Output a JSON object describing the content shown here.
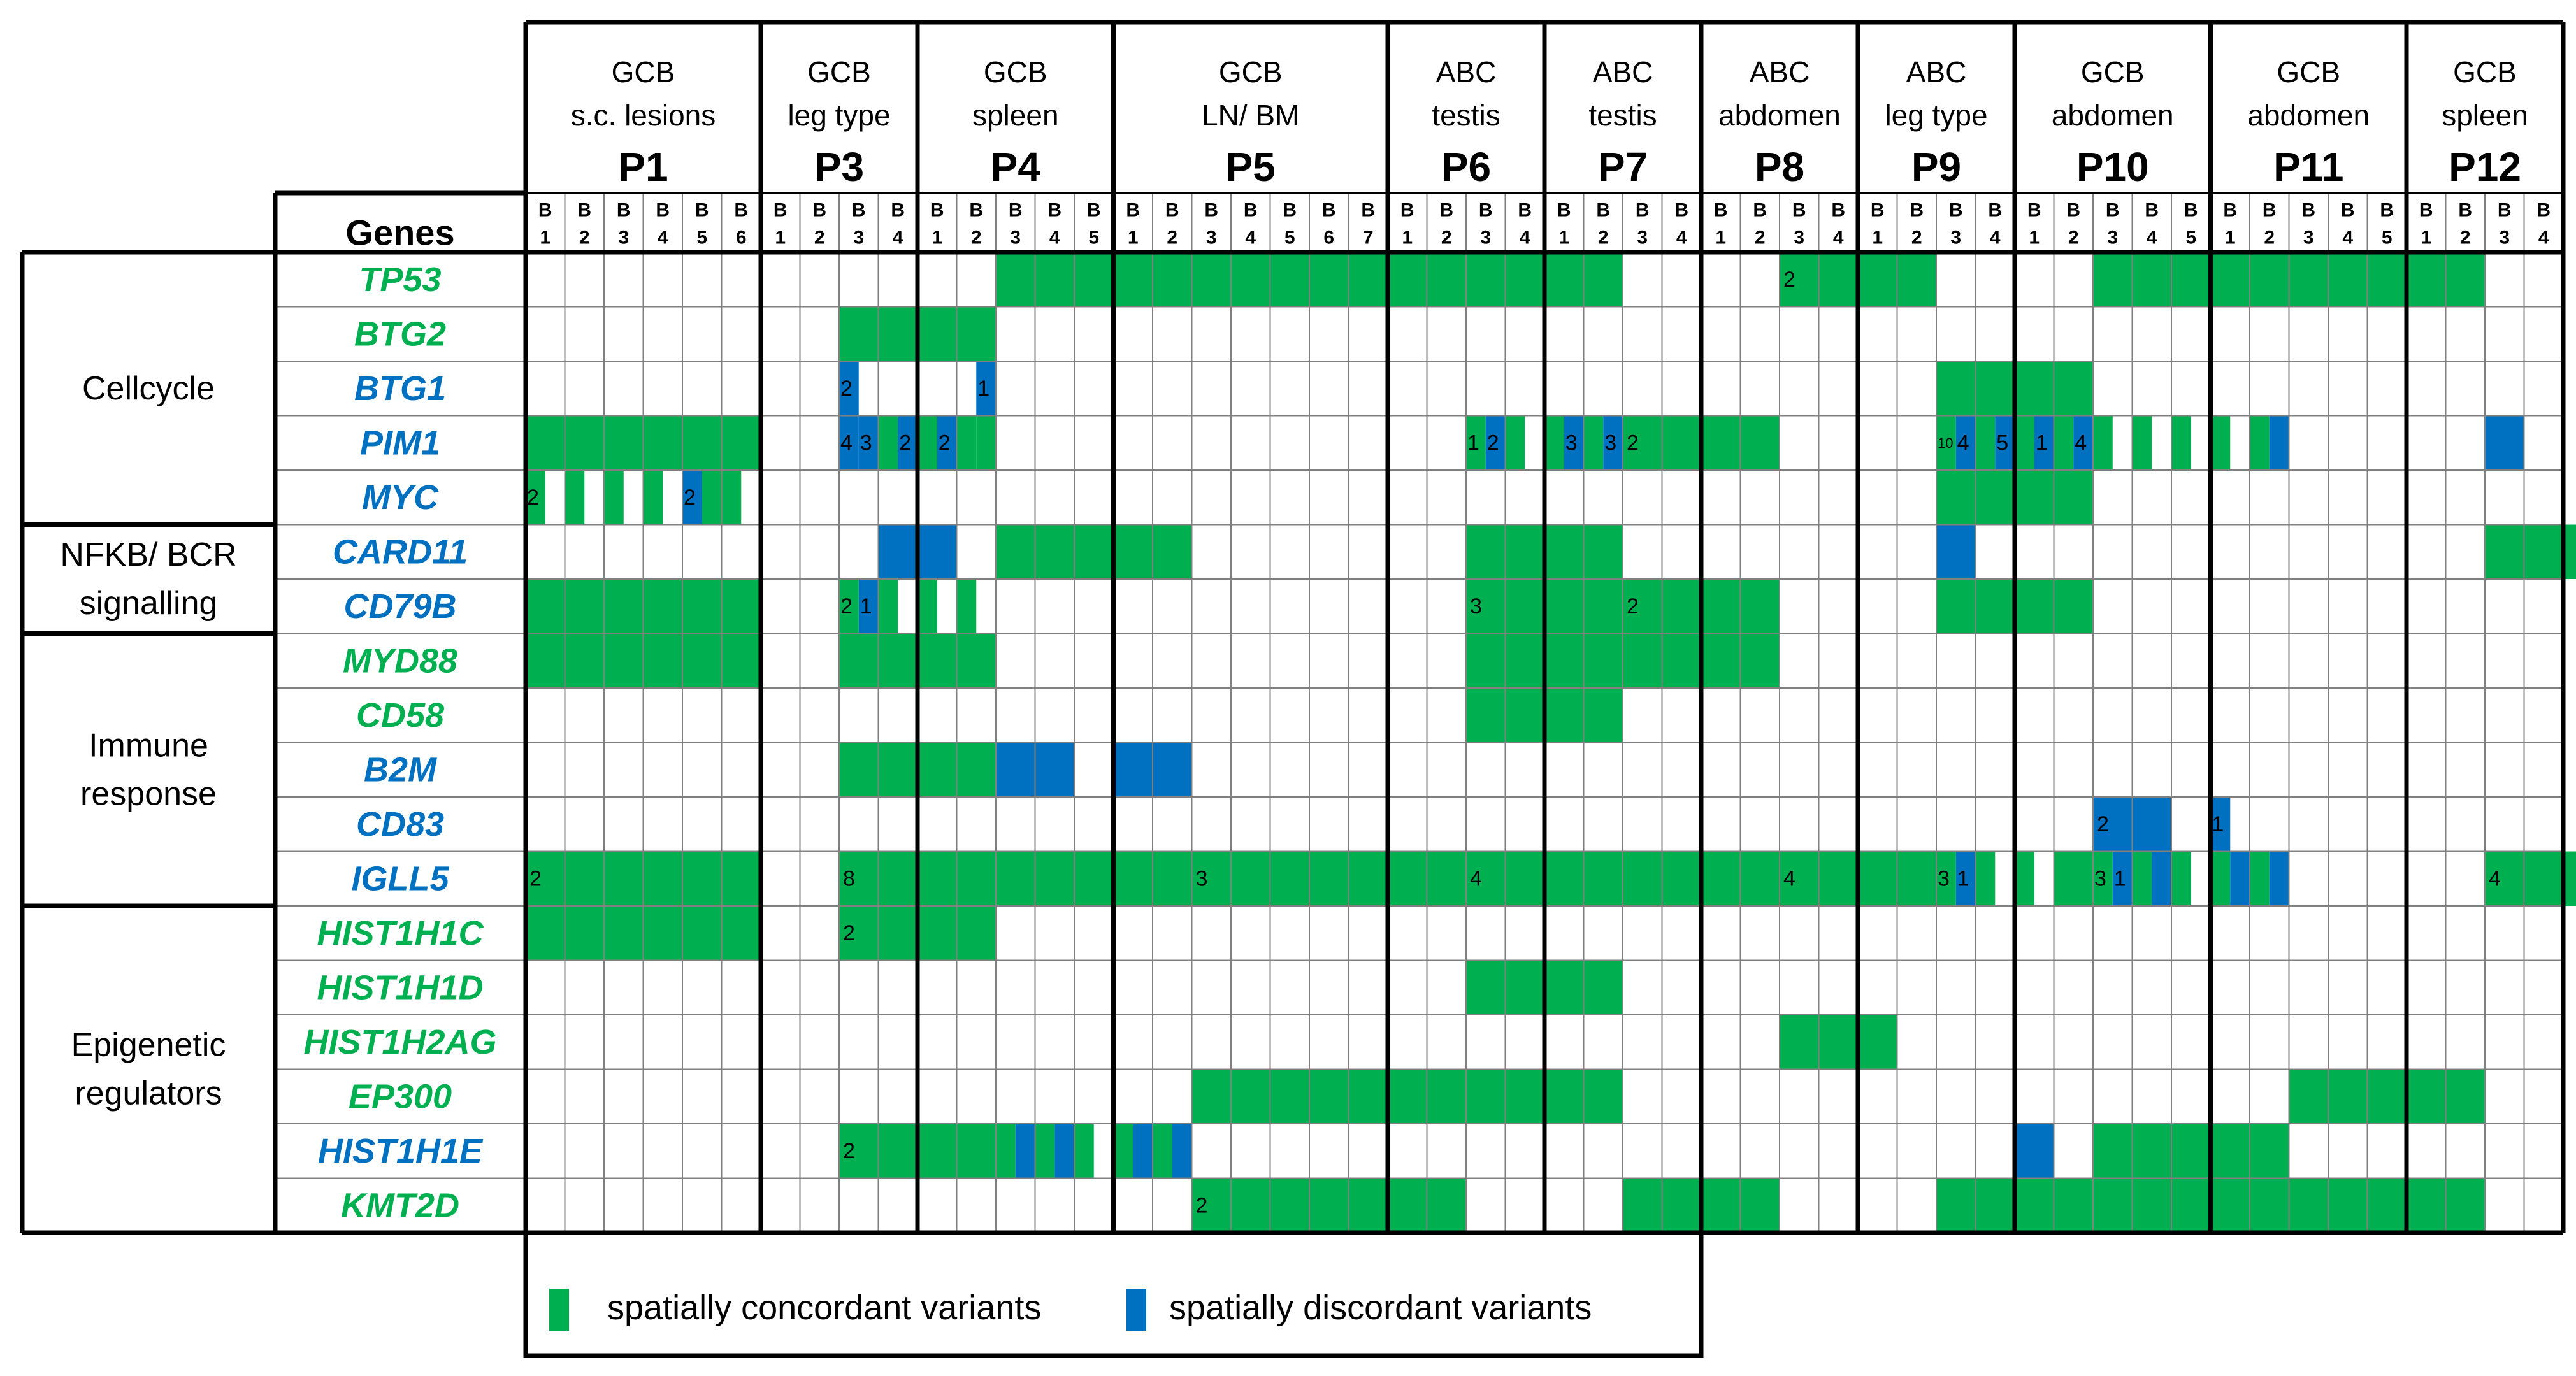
{
  "chart_data": {
    "type": "heatmap",
    "title": "",
    "corner_label": "Genes",
    "biopsy_prefix": "B",
    "patients": [
      {
        "id": "P1",
        "subtype": "GCB",
        "site": "s.c. lesions",
        "biopsies": 6
      },
      {
        "id": "P3",
        "subtype": "GCB",
        "site": "leg type",
        "biopsies": 4
      },
      {
        "id": "P4",
        "subtype": "GCB",
        "site": "spleen",
        "biopsies": 5
      },
      {
        "id": "P5",
        "subtype": "GCB",
        "site": "LN/ BM",
        "biopsies": 7
      },
      {
        "id": "P6",
        "subtype": "ABC",
        "site": "testis",
        "biopsies": 4
      },
      {
        "id": "P7",
        "subtype": "ABC",
        "site": "testis",
        "biopsies": 4
      },
      {
        "id": "P8",
        "subtype": "ABC",
        "site": "abdomen",
        "biopsies": 4
      },
      {
        "id": "P9",
        "subtype": "ABC",
        "site": "leg type",
        "biopsies": 4
      },
      {
        "id": "P10",
        "subtype": "GCB",
        "site": "abdomen",
        "biopsies": 5
      },
      {
        "id": "P11",
        "subtype": "GCB",
        "site": "abdomen",
        "biopsies": 5
      },
      {
        "id": "P12",
        "subtype": "GCB",
        "site": "spleen",
        "biopsies": 4
      }
    ],
    "categories": [
      {
        "label": [
          "Cellcycle"
        ],
        "start": 0,
        "rows": 5
      },
      {
        "label": [
          "NFKB/ BCR",
          "signalling"
        ],
        "start": 5,
        "rows": 2
      },
      {
        "label": [
          "Immune",
          "response"
        ],
        "start": 7,
        "rows": 5
      },
      {
        "label": [
          "Epigenetic",
          "regulators"
        ],
        "start": 12,
        "rows": 6
      }
    ],
    "genes": [
      {
        "name": "TP53",
        "type": "concordant",
        "cells": [
          {
            "c": 12,
            "w": 5,
            "k": "g"
          },
          {
            "c": 17,
            "w": 7,
            "k": "g"
          },
          {
            "c": 24,
            "w": 4,
            "k": "g"
          },
          {
            "c": 32,
            "w": 4,
            "k": "g",
            "n": "2"
          },
          {
            "c": 40,
            "w": 5,
            "k": "g"
          },
          {
            "c": 45,
            "w": 5,
            "k": "g"
          }
        ]
      },
      {
        "name": "BTG2",
        "type": "concordant",
        "cells": [
          {
            "c": 8,
            "w": 4,
            "k": "g"
          }
        ]
      },
      {
        "name": "BTG1",
        "type": "discordant",
        "cells": [
          {
            "c": 8,
            "w": 0.5,
            "k": "b",
            "n": "2"
          },
          {
            "c": 11.5,
            "w": 0.5,
            "k": "b",
            "n": "1"
          },
          {
            "c": 36,
            "w": 4,
            "k": "g"
          }
        ]
      },
      {
        "name": "PIM1",
        "type": "discordant",
        "cells": [
          {
            "c": 0,
            "w": 6,
            "k": "g"
          },
          {
            "c": 8,
            "w": 0.5,
            "k": "b",
            "n": "4"
          },
          {
            "c": 8.5,
            "w": 0.5,
            "k": "b",
            "n": "3"
          },
          {
            "c": 9,
            "w": 0.5,
            "k": "g"
          },
          {
            "c": 9.5,
            "w": 0.5,
            "k": "b",
            "n": "2"
          },
          {
            "c": 10,
            "w": 0.5,
            "k": "g"
          },
          {
            "c": 10.5,
            "w": 0.5,
            "k": "b",
            "n": "2"
          },
          {
            "c": 11,
            "w": 0.5,
            "k": "g"
          },
          {
            "c": 11.5,
            "w": 0.5,
            "k": "g"
          },
          {
            "c": 24,
            "w": 0.5,
            "k": "g",
            "n": "1"
          },
          {
            "c": 24.5,
            "w": 0.5,
            "k": "b",
            "n": "2"
          },
          {
            "c": 25,
            "w": 0.5,
            "k": "g"
          },
          {
            "c": 26,
            "w": 0.5,
            "k": "g"
          },
          {
            "c": 26.5,
            "w": 0.5,
            "k": "b",
            "n": "3"
          },
          {
            "c": 27,
            "w": 0.5,
            "k": "g"
          },
          {
            "c": 27.5,
            "w": 0.5,
            "k": "b",
            "n": "3"
          },
          {
            "c": 28,
            "w": 4,
            "k": "g",
            "n": "2"
          },
          {
            "c": 36,
            "w": 0.5,
            "k": "g",
            "n": "10"
          },
          {
            "c": 36.5,
            "w": 0.5,
            "k": "b",
            "n": "4"
          },
          {
            "c": 37,
            "w": 0.5,
            "k": "g"
          },
          {
            "c": 37.5,
            "w": 0.5,
            "k": "b",
            "n": "5"
          },
          {
            "c": 38,
            "w": 0.5,
            "k": "g"
          },
          {
            "c": 38.5,
            "w": 0.5,
            "k": "b",
            "n": "1"
          },
          {
            "c": 39,
            "w": 0.5,
            "k": "g"
          },
          {
            "c": 39.5,
            "w": 0.5,
            "k": "b",
            "n": "4"
          },
          {
            "c": 40,
            "w": 0.5,
            "k": "g"
          },
          {
            "c": 41,
            "w": 0.5,
            "k": "g"
          },
          {
            "c": 42,
            "w": 0.5,
            "k": "g"
          },
          {
            "c": 43,
            "w": 0.5,
            "k": "g"
          },
          {
            "c": 44,
            "w": 0.5,
            "k": "g"
          },
          {
            "c": 44.5,
            "w": 0.5,
            "k": "b"
          },
          {
            "c": 50,
            "w": 1,
            "k": "b"
          }
        ]
      },
      {
        "name": "MYC",
        "type": "discordant",
        "cells": [
          {
            "c": 0,
            "w": 0.5,
            "k": "g",
            "n": "2"
          },
          {
            "c": 1,
            "w": 0.5,
            "k": "g"
          },
          {
            "c": 2,
            "w": 0.5,
            "k": "g"
          },
          {
            "c": 3,
            "w": 0.5,
            "k": "g"
          },
          {
            "c": 4,
            "w": 0.5,
            "k": "b",
            "n": "2"
          },
          {
            "c": 4.5,
            "w": 0.5,
            "k": "g"
          },
          {
            "c": 5,
            "w": 0.5,
            "k": "g"
          },
          {
            "c": 36,
            "w": 4,
            "k": "g"
          }
        ]
      },
      {
        "name": "CARD11",
        "type": "discordant",
        "cells": [
          {
            "c": 9,
            "w": 2,
            "k": "b"
          },
          {
            "c": 12,
            "w": 5,
            "k": "g"
          },
          {
            "c": 24,
            "w": 4,
            "k": "g"
          },
          {
            "c": 36,
            "w": 1,
            "k": "b"
          },
          {
            "c": 50,
            "w": 4,
            "k": "g"
          }
        ]
      },
      {
        "name": "CD79B",
        "type": "discordant",
        "cells": [
          {
            "c": 0,
            "w": 6,
            "k": "g"
          },
          {
            "c": 8,
            "w": 0.5,
            "k": "g",
            "n": "2"
          },
          {
            "c": 8.5,
            "w": 0.5,
            "k": "b",
            "n": "1"
          },
          {
            "c": 9,
            "w": 0.5,
            "k": "g"
          },
          {
            "c": 10,
            "w": 0.5,
            "k": "g"
          },
          {
            "c": 11,
            "w": 0.5,
            "k": "g"
          },
          {
            "c": 24,
            "w": 4,
            "k": "g",
            "n": "3"
          },
          {
            "c": 28,
            "w": 4,
            "k": "g",
            "n": "2"
          },
          {
            "c": 36,
            "w": 4,
            "k": "g"
          }
        ]
      },
      {
        "name": "MYD88",
        "type": "concordant",
        "cells": [
          {
            "c": 0,
            "w": 6,
            "k": "g"
          },
          {
            "c": 8,
            "w": 4,
            "k": "g"
          },
          {
            "c": 24,
            "w": 4,
            "k": "g"
          },
          {
            "c": 28,
            "w": 4,
            "k": "g"
          }
        ]
      },
      {
        "name": "CD58",
        "type": "concordant",
        "cells": [
          {
            "c": 24,
            "w": 4,
            "k": "g"
          }
        ]
      },
      {
        "name": "B2M",
        "type": "discordant",
        "cells": [
          {
            "c": 8,
            "w": 4,
            "k": "g"
          },
          {
            "c": 12,
            "w": 2,
            "k": "b"
          },
          {
            "c": 15,
            "w": 2,
            "k": "b"
          }
        ]
      },
      {
        "name": "CD83",
        "type": "discordant",
        "cells": [
          {
            "c": 40,
            "w": 1,
            "k": "b",
            "n": "2"
          },
          {
            "c": 41,
            "w": 1,
            "k": "b"
          },
          {
            "c": 43,
            "w": 0.5,
            "k": "b",
            "n": "1"
          }
        ]
      },
      {
        "name": "IGLL5",
        "type": "discordant",
        "cells": [
          {
            "c": 0,
            "w": 6,
            "k": "g",
            "n": "2"
          },
          {
            "c": 8,
            "w": 4,
            "k": "g",
            "n": "8"
          },
          {
            "c": 12,
            "w": 5,
            "k": "g"
          },
          {
            "c": 17,
            "w": 7,
            "k": "g",
            "n": "3"
          },
          {
            "c": 24,
            "w": 4,
            "k": "g",
            "n": "4"
          },
          {
            "c": 28,
            "w": 4,
            "k": "g"
          },
          {
            "c": 32,
            "w": 4,
            "k": "g",
            "n": "4"
          },
          {
            "c": 36,
            "w": 0.5,
            "k": "g",
            "n": "3"
          },
          {
            "c": 36.5,
            "w": 0.5,
            "k": "b",
            "n": "1"
          },
          {
            "c": 37,
            "w": 0.5,
            "k": "g"
          },
          {
            "c": 38,
            "w": 0.5,
            "k": "g"
          },
          {
            "c": 39,
            "w": 1,
            "k": "g"
          },
          {
            "c": 40,
            "w": 0.5,
            "k": "g",
            "n": "3"
          },
          {
            "c": 40.5,
            "w": 0.5,
            "k": "b",
            "n": "1"
          },
          {
            "c": 41,
            "w": 0.5,
            "k": "g"
          },
          {
            "c": 41.5,
            "w": 0.5,
            "k": "b"
          },
          {
            "c": 42,
            "w": 0.5,
            "k": "g"
          },
          {
            "c": 43,
            "w": 0.5,
            "k": "g"
          },
          {
            "c": 43.5,
            "w": 0.5,
            "k": "b"
          },
          {
            "c": 44,
            "w": 0.5,
            "k": "g"
          },
          {
            "c": 44.5,
            "w": 0.5,
            "k": "b"
          },
          {
            "c": 50,
            "w": 4,
            "k": "g",
            "n": "4"
          }
        ]
      },
      {
        "name": "HIST1H1C",
        "type": "concordant",
        "cells": [
          {
            "c": 0,
            "w": 6,
            "k": "g"
          },
          {
            "c": 8,
            "w": 4,
            "k": "g",
            "n": "2"
          }
        ]
      },
      {
        "name": "HIST1H1D",
        "type": "concordant",
        "cells": [
          {
            "c": 24,
            "w": 4,
            "k": "g"
          }
        ]
      },
      {
        "name": "HIST1H2AG",
        "type": "concordant",
        "cells": [
          {
            "c": 32,
            "w": 3,
            "k": "g"
          }
        ]
      },
      {
        "name": "EP300",
        "type": "concordant",
        "cells": [
          {
            "c": 17,
            "w": 7,
            "k": "g"
          },
          {
            "c": 24,
            "w": 4,
            "k": "g"
          },
          {
            "c": 45,
            "w": 5,
            "k": "g"
          }
        ]
      },
      {
        "name": "HIST1H1E",
        "type": "discordant",
        "cells": [
          {
            "c": 8,
            "w": 4,
            "k": "g",
            "n": "2"
          },
          {
            "c": 12,
            "w": 0.5,
            "k": "g"
          },
          {
            "c": 12.5,
            "w": 0.5,
            "k": "b"
          },
          {
            "c": 13,
            "w": 0.5,
            "k": "g"
          },
          {
            "c": 13.5,
            "w": 0.5,
            "k": "b"
          },
          {
            "c": 14,
            "w": 0.5,
            "k": "g"
          },
          {
            "c": 15,
            "w": 0.5,
            "k": "g"
          },
          {
            "c": 15.5,
            "w": 0.5,
            "k": "b"
          },
          {
            "c": 16,
            "w": 0.5,
            "k": "g"
          },
          {
            "c": 16.5,
            "w": 0.5,
            "k": "b"
          },
          {
            "c": 38,
            "w": 1,
            "k": "b"
          },
          {
            "c": 40,
            "w": 5,
            "k": "g"
          }
        ]
      },
      {
        "name": "KMT2D",
        "type": "concordant",
        "cells": [
          {
            "c": 17,
            "w": 7,
            "k": "g",
            "n": "2"
          },
          {
            "c": 28,
            "w": 4,
            "k": "g"
          },
          {
            "c": 36,
            "w": 4,
            "k": "g"
          },
          {
            "c": 40,
            "w": 5,
            "k": "g"
          },
          {
            "c": 45,
            "w": 5,
            "k": "g"
          }
        ]
      }
    ],
    "legend": [
      {
        "label": "spatially concordant variants",
        "key": "g"
      },
      {
        "label": "spatially discordant variants",
        "key": "b"
      }
    ],
    "colors": {
      "g": "#00b050",
      "b": "#0070c0",
      "grid": "#808080",
      "border": "#000000",
      "text": "#000000"
    }
  }
}
